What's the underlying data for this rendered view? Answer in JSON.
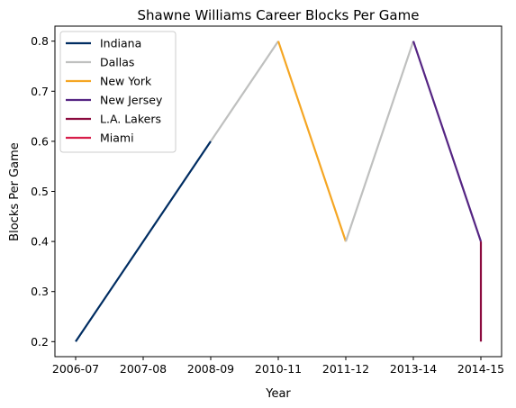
{
  "chart_data": {
    "type": "line",
    "title": "Shawne Williams Career Blocks Per Game",
    "xlabel": "Year",
    "ylabel": "Blocks Per Game",
    "categories": [
      "2006-07",
      "2007-08",
      "2008-09",
      "2010-11",
      "2011-12",
      "2013-14",
      "2014-15"
    ],
    "yticks": [
      0.2,
      0.3,
      0.4,
      0.5,
      0.6,
      0.7,
      0.8
    ],
    "ylim": [
      0.17,
      0.83
    ],
    "legend_position": "top-left",
    "grid": false,
    "series": [
      {
        "name": "Indiana",
        "color": "#002D62",
        "points": [
          {
            "x": "2006-07",
            "y": 0.2
          },
          {
            "x": "2007-08",
            "y": 0.4
          },
          {
            "x": "2008-09",
            "y": 0.6
          }
        ]
      },
      {
        "name": "Dallas",
        "color": "#BFC0BF",
        "points": [
          {
            "x": "2008-09",
            "y": 0.6
          },
          {
            "x": "2010-11",
            "y": 0.8
          }
        ]
      },
      {
        "name": "New York",
        "color": "#F5A623",
        "points": [
          {
            "x": "2010-11",
            "y": 0.8
          },
          {
            "x": "2011-12",
            "y": 0.4
          }
        ]
      },
      {
        "name": "Dallas",
        "color": "#BFC0BF",
        "legend": false,
        "points": [
          {
            "x": "2011-12",
            "y": 0.4
          },
          {
            "x": "2013-14",
            "y": 0.8
          }
        ]
      },
      {
        "name": "New Jersey",
        "color": "#552583",
        "points": [
          {
            "x": "2013-14",
            "y": 0.8
          },
          {
            "x": "2014-15",
            "y": 0.4
          }
        ]
      },
      {
        "name": "L.A. Lakers",
        "color": "#8B0A3E",
        "points": [
          {
            "x": "2014-15",
            "y": 0.4
          },
          {
            "x": "2014-15",
            "y": 0.2
          }
        ]
      },
      {
        "name": "Miami",
        "color": "#D81E4A",
        "points": [
          {
            "x": "2014-15",
            "y": 0.2
          },
          {
            "x": "2014-15",
            "y": 0.2
          }
        ]
      }
    ],
    "legend": [
      {
        "name": "Indiana",
        "color": "#002D62"
      },
      {
        "name": "Dallas",
        "color": "#BFC0BF"
      },
      {
        "name": "New York",
        "color": "#F5A623"
      },
      {
        "name": "New Jersey",
        "color": "#552583"
      },
      {
        "name": "L.A. Lakers",
        "color": "#8B0A3E"
      },
      {
        "name": "Miami",
        "color": "#D81E4A"
      }
    ]
  }
}
